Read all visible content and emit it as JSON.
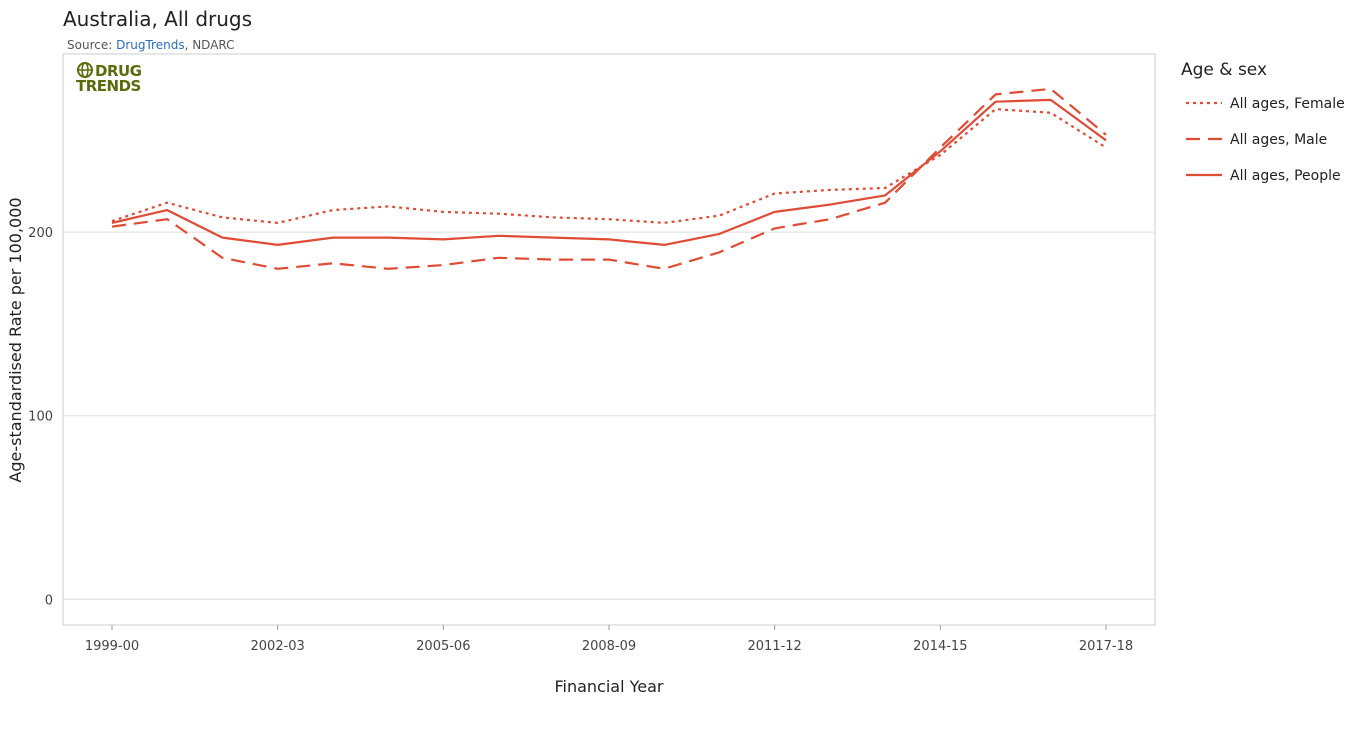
{
  "chart_data": {
    "type": "line",
    "title": "Australia, All drugs",
    "source": {
      "prefix": "Source: ",
      "link_text": "DrugTrends",
      "suffix": ", NDARC"
    },
    "logo": {
      "line1": "DRUG",
      "line2": "TRENDS",
      "color": "#5a6b0c"
    },
    "xlabel": "Financial Year",
    "ylabel": "Age-standardised Rate per 100,000",
    "x": [
      "1999-00",
      "2000-01",
      "2001-02",
      "2002-03",
      "2003-04",
      "2004-05",
      "2005-06",
      "2006-07",
      "2007-08",
      "2008-09",
      "2009-10",
      "2010-11",
      "2011-12",
      "2012-13",
      "2013-14",
      "2014-15",
      "2015-16",
      "2016-17",
      "2017-18"
    ],
    "x_tick_labels": [
      "1999-00",
      "2002-03",
      "2005-06",
      "2008-09",
      "2011-12",
      "2014-15",
      "2017-18"
    ],
    "y_ticks": [
      0,
      100,
      200
    ],
    "ylim": [
      -14,
      297
    ],
    "grid": "horizontal",
    "legend_position": "right",
    "legend_title": "Age & sex",
    "series": [
      {
        "name": "All ages, Female",
        "style": "dotted",
        "color": "#e04b35",
        "values": [
          206,
          216,
          208,
          205,
          212,
          214,
          211,
          210,
          208,
          207,
          205,
          209,
          221,
          223,
          224,
          242,
          267,
          265,
          246
        ]
      },
      {
        "name": "All ages, Male",
        "style": "dashed",
        "color": "#e04b35",
        "values": [
          203,
          207,
          186,
          180,
          183,
          180,
          182,
          186,
          185,
          185,
          180,
          189,
          202,
          207,
          216,
          246,
          275,
          278,
          253
        ]
      },
      {
        "name": "All ages, People",
        "style": "solid",
        "color": "#e04b35",
        "values": [
          205,
          212,
          197,
          193,
          197,
          197,
          196,
          198,
          197,
          196,
          193,
          199,
          211,
          215,
          220,
          244,
          271,
          272,
          250
        ]
      }
    ]
  }
}
